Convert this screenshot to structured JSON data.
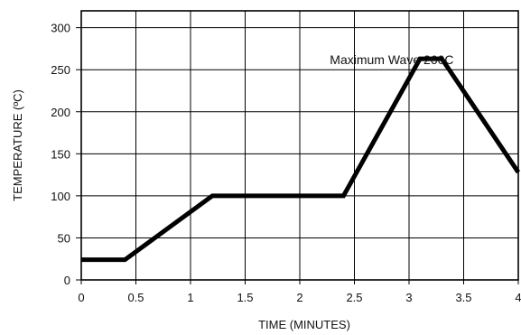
{
  "chart_data": {
    "type": "line",
    "xlabel": "TIME (MINUTES)",
    "ylabel": "TEMPERATURE  (ºC)",
    "xlim": [
      0,
      4
    ],
    "ylim": [
      0,
      320
    ],
    "x_ticks": [
      0,
      0.5,
      1,
      1.5,
      2,
      2.5,
      3,
      3.5,
      4
    ],
    "x_tick_labels": [
      "0",
      "0.5",
      "1",
      "1.5",
      "2",
      "2.5",
      "3",
      "3.5",
      "4"
    ],
    "y_ticks": [
      0,
      50,
      100,
      150,
      200,
      250,
      300
    ],
    "y_tick_labels": [
      "0",
      "50",
      "100",
      "150",
      "200",
      "250",
      "300"
    ],
    "grid": true,
    "series": [
      {
        "x": [
          0,
          0.4,
          1.2,
          2.4,
          3.1,
          3.3,
          4.0
        ],
        "y": [
          24,
          24,
          100,
          100,
          263,
          263,
          128
        ]
      }
    ],
    "annotations": [
      {
        "text": "Maximum Wave 260C",
        "x": 2.3,
        "y": 262
      }
    ]
  }
}
